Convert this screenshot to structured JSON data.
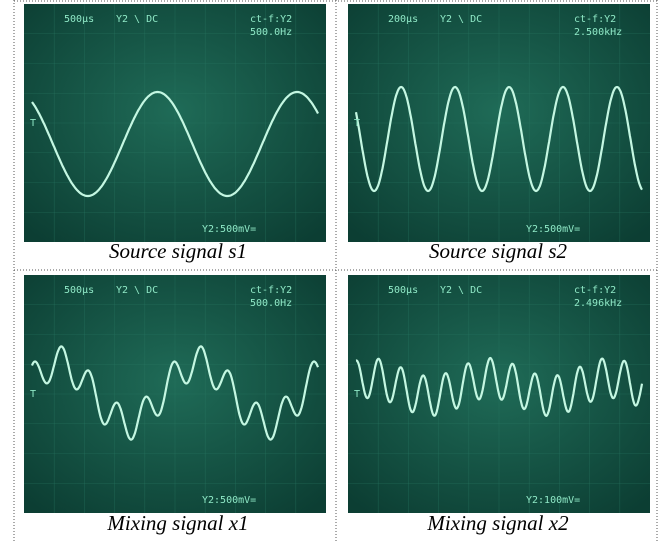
{
  "panels": [
    {
      "timebase": "500µs",
      "channel": "Y2 \\ DC",
      "trigger": "ct-f:Y2",
      "frequency": "500.0Hz",
      "scale": "Y2:500mV=",
      "caption": "Source signal s1"
    },
    {
      "timebase": "200µs",
      "channel": "Y2 \\ DC",
      "trigger": "ct-f:Y2",
      "frequency": "2.500kHz",
      "scale": "Y2:500mV=",
      "caption": "Source signal s2"
    },
    {
      "timebase": "500µs",
      "channel": "Y2 \\ DC",
      "trigger": "ct-f:Y2",
      "frequency": "500.0Hz",
      "scale": "Y2:500mV=",
      "caption": "Mixing signal x1"
    },
    {
      "timebase": "500µs",
      "channel": "Y2 \\ DC",
      "trigger": "ct-f:Y2",
      "frequency": "2.496kHz",
      "scale": "Y2:100mV=",
      "caption": "Mixing signal x2"
    }
  ]
}
